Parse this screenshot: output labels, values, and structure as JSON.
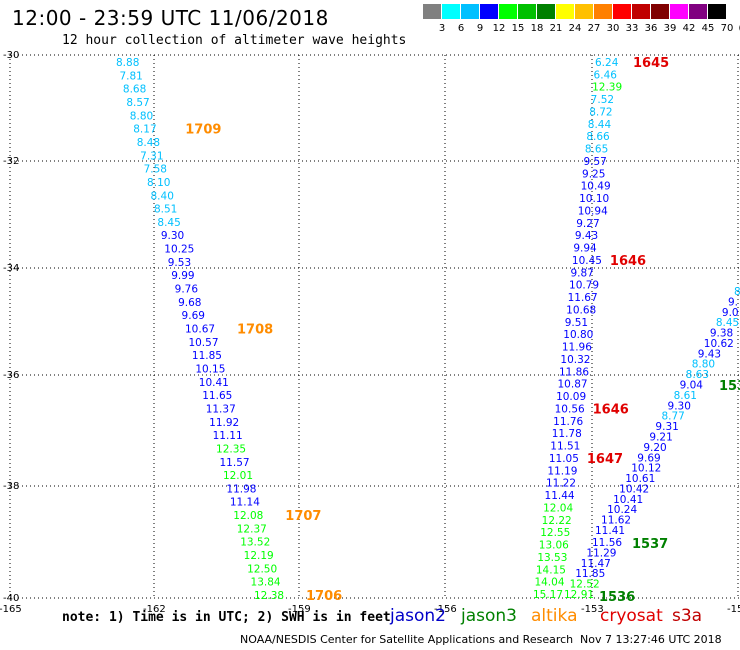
{
  "header": {
    "title": "12:00 - 23:59 UTC 11/06/2018",
    "subtitle": "12 hour collection of altimeter wave heights"
  },
  "legend": {
    "colors": [
      "#808080",
      "#00ffff",
      "#00c0ff",
      "#0000ff",
      "#00ff00",
      "#00c000",
      "#008000",
      "#ffff00",
      "#ffc000",
      "#ff8000",
      "#ff0000",
      "#c00000",
      "#800000",
      "#ff00ff",
      "#800080",
      "#000000"
    ],
    "labels": [
      "3",
      "6",
      "9",
      "12",
      "15",
      "18",
      "21",
      "24",
      "27",
      "30",
      "33",
      "36",
      "39",
      "42",
      "45",
      "70",
      "(ft)"
    ]
  },
  "axes": {
    "lat_labels": [
      "-30",
      "-32",
      "-34",
      "-36",
      "-38",
      "-40"
    ],
    "lon_labels": [
      "-165",
      "-162",
      "-159",
      "-156",
      "-153",
      "-15"
    ]
  },
  "observations": {
    "west": [
      {
        "v": "8.88",
        "c": "#00c0ff"
      },
      {
        "v": "7.81",
        "c": "#00c0ff"
      },
      {
        "v": "8.68",
        "c": "#00c0ff"
      },
      {
        "v": "8.57",
        "c": "#00c0ff"
      },
      {
        "v": "8.80",
        "c": "#00c0ff"
      },
      {
        "v": "8.17",
        "c": "#00c0ff"
      },
      {
        "v": "8.48",
        "c": "#00c0ff"
      },
      {
        "v": "7.31",
        "c": "#00c0ff"
      },
      {
        "v": "7.58",
        "c": "#00c0ff"
      },
      {
        "v": "8.10",
        "c": "#00c0ff"
      },
      {
        "v": "8.40",
        "c": "#00c0ff"
      },
      {
        "v": "8.51",
        "c": "#00c0ff"
      },
      {
        "v": "8.45",
        "c": "#00c0ff"
      },
      {
        "v": "9.30",
        "c": "#0000ff"
      },
      {
        "v": "10.25",
        "c": "#0000ff"
      },
      {
        "v": "9.53",
        "c": "#0000ff"
      },
      {
        "v": "9.99",
        "c": "#0000ff"
      },
      {
        "v": "9.76",
        "c": "#0000ff"
      },
      {
        "v": "9.68",
        "c": "#0000ff"
      },
      {
        "v": "9.69",
        "c": "#0000ff"
      },
      {
        "v": "10.67",
        "c": "#0000ff"
      },
      {
        "v": "10.57",
        "c": "#0000ff"
      },
      {
        "v": "11.85",
        "c": "#0000ff"
      },
      {
        "v": "10.15",
        "c": "#0000ff"
      },
      {
        "v": "10.41",
        "c": "#0000ff"
      },
      {
        "v": "11.65",
        "c": "#0000ff"
      },
      {
        "v": "11.37",
        "c": "#0000ff"
      },
      {
        "v": "11.92",
        "c": "#0000ff"
      },
      {
        "v": "11.11",
        "c": "#0000ff"
      },
      {
        "v": "12.35",
        "c": "#00ff00"
      },
      {
        "v": "11.57",
        "c": "#0000ff"
      },
      {
        "v": "12.01",
        "c": "#00ff00"
      },
      {
        "v": "11.98",
        "c": "#0000ff"
      },
      {
        "v": "11.14",
        "c": "#0000ff"
      },
      {
        "v": "12.08",
        "c": "#00ff00"
      },
      {
        "v": "12.37",
        "c": "#00ff00"
      },
      {
        "v": "13.52",
        "c": "#00ff00"
      },
      {
        "v": "12.19",
        "c": "#00ff00"
      },
      {
        "v": "12.50",
        "c": "#00ff00"
      },
      {
        "v": "13.84",
        "c": "#00ff00"
      },
      {
        "v": "12.38",
        "c": "#00ff00"
      }
    ],
    "west_times": [
      {
        "t": "1709",
        "row": 5
      },
      {
        "t": "1708",
        "row": 20
      },
      {
        "t": "1707",
        "row": 34
      },
      {
        "t": "1706",
        "row": 40
      }
    ],
    "center": [
      {
        "v": "6.24",
        "c": "#00c0ff"
      },
      {
        "v": "6.46",
        "c": "#00c0ff"
      },
      {
        "v": "12.39",
        "c": "#00ff00"
      },
      {
        "v": "7.52",
        "c": "#00c0ff"
      },
      {
        "v": "8.72",
        "c": "#00c0ff"
      },
      {
        "v": "8.44",
        "c": "#00c0ff"
      },
      {
        "v": "8.66",
        "c": "#00c0ff"
      },
      {
        "v": "8.65",
        "c": "#00c0ff"
      },
      {
        "v": "9.57",
        "c": "#0000ff"
      },
      {
        "v": "9.25",
        "c": "#0000ff"
      },
      {
        "v": "10.49",
        "c": "#0000ff"
      },
      {
        "v": "10.10",
        "c": "#0000ff"
      },
      {
        "v": "10.94",
        "c": "#0000ff"
      },
      {
        "v": "9.27",
        "c": "#0000ff"
      },
      {
        "v": "9.43",
        "c": "#0000ff"
      },
      {
        "v": "9.94",
        "c": "#0000ff"
      },
      {
        "v": "10.45",
        "c": "#0000ff"
      },
      {
        "v": "9.87",
        "c": "#0000ff"
      },
      {
        "v": "10.79",
        "c": "#0000ff"
      },
      {
        "v": "11.67",
        "c": "#0000ff"
      },
      {
        "v": "10.68",
        "c": "#0000ff"
      },
      {
        "v": "9.51",
        "c": "#0000ff"
      },
      {
        "v": "10.80",
        "c": "#0000ff"
      },
      {
        "v": "11.96",
        "c": "#0000ff"
      },
      {
        "v": "10.32",
        "c": "#0000ff"
      },
      {
        "v": "11.86",
        "c": "#0000ff"
      },
      {
        "v": "10.87",
        "c": "#0000ff"
      },
      {
        "v": "10.09",
        "c": "#0000ff"
      },
      {
        "v": "10.56",
        "c": "#0000ff"
      },
      {
        "v": "11.76",
        "c": "#0000ff"
      },
      {
        "v": "11.78",
        "c": "#0000ff"
      },
      {
        "v": "11.51",
        "c": "#0000ff"
      },
      {
        "v": "11.05",
        "c": "#0000ff"
      },
      {
        "v": "11.19",
        "c": "#0000ff"
      },
      {
        "v": "11.22",
        "c": "#0000ff"
      },
      {
        "v": "11.44",
        "c": "#0000ff"
      },
      {
        "v": "12.04",
        "c": "#00ff00"
      },
      {
        "v": "12.22",
        "c": "#00ff00"
      },
      {
        "v": "12.55",
        "c": "#00ff00"
      },
      {
        "v": "13.06",
        "c": "#00ff00"
      },
      {
        "v": "13.53",
        "c": "#00ff00"
      },
      {
        "v": "14.15",
        "c": "#00ff00"
      },
      {
        "v": "14.04",
        "c": "#00ff00"
      },
      {
        "v": "15.17",
        "c": "#00ff00"
      }
    ],
    "center_times": [
      {
        "t": "1645",
        "row": 0
      },
      {
        "t": "1646",
        "row": 16
      },
      {
        "t": "1646",
        "row": 28
      },
      {
        "t": "1647",
        "row": 32
      }
    ],
    "east": [
      {
        "v": "11.41",
        "c": "#0000ff"
      },
      {
        "v": "11.62",
        "c": "#0000ff"
      },
      {
        "v": "10.24",
        "c": "#0000ff"
      },
      {
        "v": "10.41",
        "c": "#0000ff"
      },
      {
        "v": "10.42",
        "c": "#0000ff"
      },
      {
        "v": "10.61",
        "c": "#0000ff"
      },
      {
        "v": "10.12",
        "c": "#0000ff"
      },
      {
        "v": "9.69",
        "c": "#0000ff"
      },
      {
        "v": "9.20",
        "c": "#0000ff"
      },
      {
        "v": "9.21",
        "c": "#0000ff"
      },
      {
        "v": "9.31",
        "c": "#0000ff"
      },
      {
        "v": "8.77",
        "c": "#00c0ff"
      },
      {
        "v": "9.30",
        "c": "#0000ff"
      },
      {
        "v": "8.61",
        "c": "#00c0ff"
      },
      {
        "v": "9.04",
        "c": "#0000ff"
      },
      {
        "v": "8.63",
        "c": "#00c0ff"
      },
      {
        "v": "8.80",
        "c": "#00c0ff"
      },
      {
        "v": "9.43",
        "c": "#0000ff"
      },
      {
        "v": "10.62",
        "c": "#0000ff"
      },
      {
        "v": "9.38",
        "c": "#0000ff"
      },
      {
        "v": "8.45",
        "c": "#00c0ff"
      },
      {
        "v": "9.0",
        "c": "#0000ff"
      },
      {
        "v": "9.",
        "c": "#0000ff"
      },
      {
        "v": "8",
        "c": "#00c0ff"
      }
    ],
    "east_bottom": [
      {
        "v": "11.56",
        "c": "#0000ff"
      },
      {
        "v": "11.29",
        "c": "#0000ff"
      },
      {
        "v": "11.47",
        "c": "#0000ff"
      },
      {
        "v": "11.85",
        "c": "#0000ff"
      },
      {
        "v": "12.52",
        "c": "#00ff00"
      },
      {
        "v": "12.91",
        "c": "#00ff00"
      }
    ],
    "east_times": [
      {
        "t": "1537",
        "pos": "mid"
      },
      {
        "t": "1536",
        "pos": "bottom"
      },
      {
        "t": "153",
        "pos": "edge"
      }
    ]
  },
  "footer": {
    "note": "note: 1) Time is in UTC; 2) SWH is in feet",
    "satellites": [
      {
        "name": "jason2",
        "color": "#0000c8"
      },
      {
        "name": "jason3",
        "color": "#008000"
      },
      {
        "name": "altika",
        "color": "#ff8c00"
      },
      {
        "name": "cryosat",
        "color": "#e00000"
      },
      {
        "name": "s3a",
        "color": "#c00000"
      }
    ],
    "credit": "NOAA/NESDIS Center for Satellite Applications and Research",
    "timestamp": "Nov  7 13:27:46 UTC 2018"
  },
  "time_colors": {
    "altika": "#ff8c00",
    "cryosat": "#e00000",
    "jason3": "#008000"
  }
}
